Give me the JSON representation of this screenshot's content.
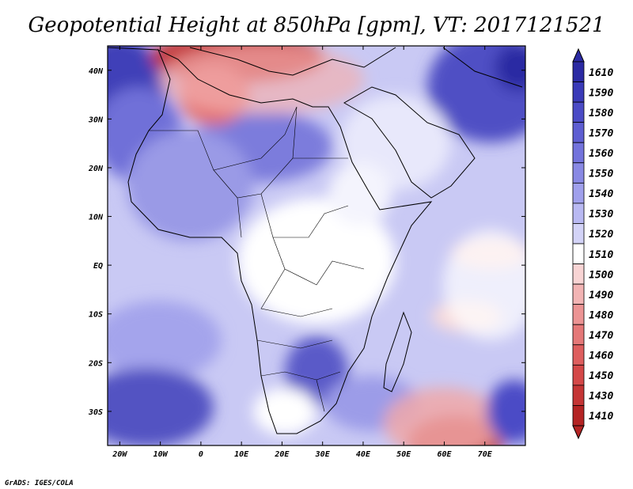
{
  "title": "Geopotential Height at 850hPa [gpm], VT: 2017121521",
  "footer": "GrADS: IGES/COLA",
  "map": {
    "region": "Africa",
    "lon_range": [
      -23,
      80
    ],
    "lat_range": [
      -37,
      45
    ],
    "x_ticks": [
      "20W",
      "10W",
      "0",
      "10E",
      "20E",
      "30E",
      "40E",
      "50E",
      "60E",
      "70E"
    ],
    "x_tick_lons": [
      -20,
      -10,
      0,
      10,
      20,
      30,
      40,
      50,
      60,
      70
    ],
    "y_ticks": [
      "40N",
      "30N",
      "20N",
      "10N",
      "EQ",
      "10S",
      "20S",
      "30S"
    ],
    "y_tick_lats": [
      40,
      30,
      20,
      10,
      0,
      -10,
      -20,
      -30
    ]
  },
  "colorbar": {
    "levels": [
      "1610",
      "1590",
      "1580",
      "1570",
      "1560",
      "1550",
      "1540",
      "1530",
      "1520",
      "1510",
      "1500",
      "1490",
      "1480",
      "1470",
      "1460",
      "1450",
      "1430",
      "1410"
    ],
    "colors": [
      "#2b2aa3",
      "#3a3ab8",
      "#4b4bc6",
      "#5e5ed2",
      "#7373dc",
      "#8989e4",
      "#a0a0ec",
      "#b9b9f2",
      "#d3d3f7",
      "#ffffff",
      "#f8d4d4",
      "#f2b4b4",
      "#ec9494",
      "#e57878",
      "#de5e5e",
      "#d44848",
      "#c53535",
      "#b42424"
    ]
  }
}
